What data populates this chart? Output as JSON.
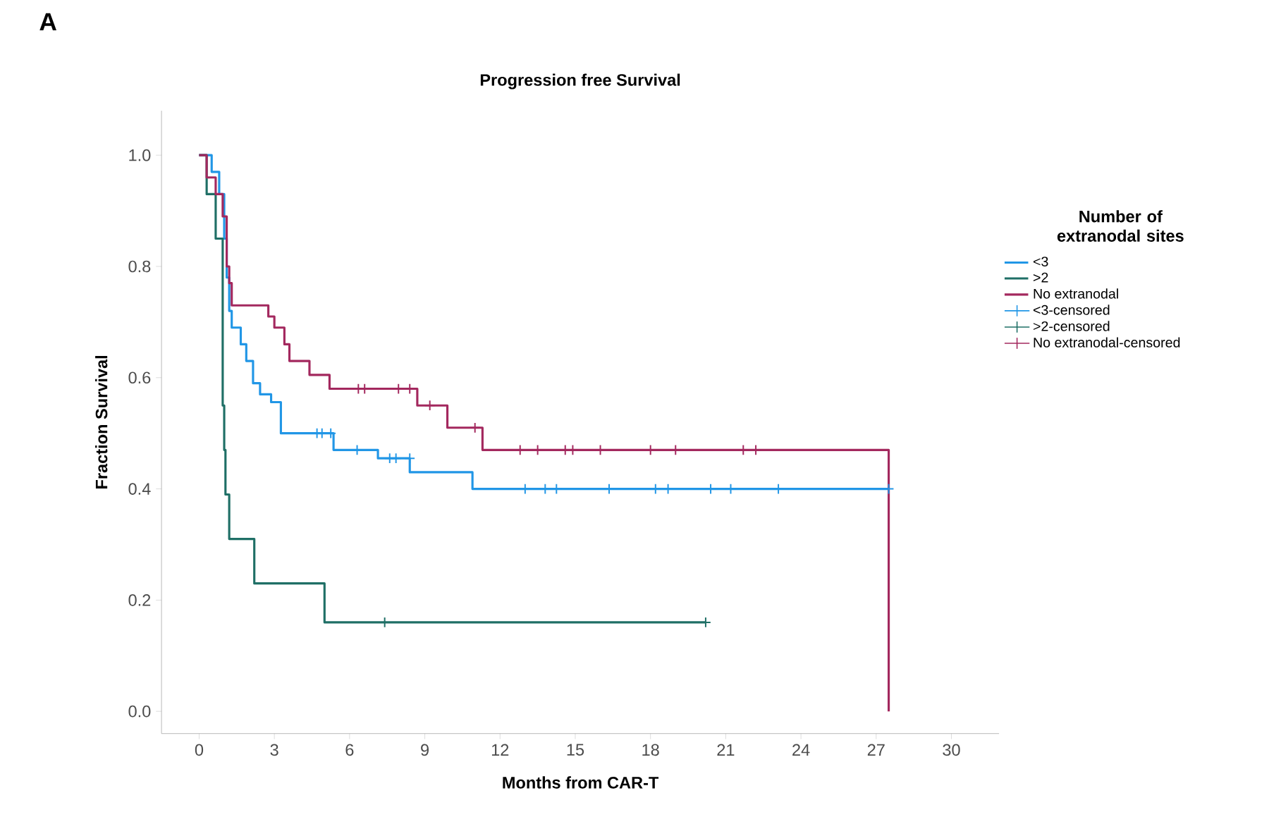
{
  "chart_data": {
    "type": "step",
    "title": "Progression free Survival",
    "xlabel": "Months from CAR-T",
    "ylabel": "Fraction Survival",
    "legend_title": "Number of extranodal sites",
    "annotations": [
      "A"
    ],
    "xlim": [
      -1.5,
      31.9
    ],
    "ylim": [
      -0.04,
      1.08
    ],
    "xticks": [
      0,
      3,
      6,
      9,
      12,
      15,
      18,
      21,
      24,
      27,
      30
    ],
    "yticks": [
      {
        "value": 0,
        "label": "0.0"
      },
      0.2,
      0.4,
      0.6,
      0.8,
      {
        "value": 1,
        "label": "1.0"
      }
    ],
    "grid": false,
    "legend": "right",
    "marker": "none",
    "line_style": "solid",
    "series": [
      {
        "name": "<3",
        "color": "#2196e6",
        "x": [
          0,
          0.5,
          0.8,
          1.0,
          1.1,
          1.2,
          1.3,
          1.66,
          1.88,
          2.15,
          2.43,
          2.87,
          3.26,
          5.36,
          7.13,
          8.4,
          10.9,
          27.5
        ],
        "values": [
          1.0,
          0.97,
          0.93,
          0.85,
          0.78,
          0.72,
          0.69,
          0.66,
          0.63,
          0.59,
          0.57,
          0.556,
          0.5,
          0.47,
          0.455,
          0.43,
          0.4,
          0.4
        ]
      },
      {
        "name": ">2",
        "color": "#1f6f66",
        "x": [
          0,
          0.3,
          0.66,
          0.94,
          1.0,
          1.05,
          1.2,
          2.2,
          5.0,
          20.2
        ],
        "values": [
          1.0,
          0.93,
          0.85,
          0.55,
          0.47,
          0.39,
          0.31,
          0.23,
          0.16,
          0.16
        ]
      },
      {
        "name": "No extranodal",
        "color": "#a3285e",
        "x": [
          0,
          0.3,
          0.66,
          0.94,
          1.1,
          1.2,
          1.3,
          2.76,
          3.0,
          3.4,
          3.6,
          4.4,
          5.2,
          8.7,
          9.9,
          11.3,
          27.5,
          27.5
        ],
        "values": [
          1.0,
          0.96,
          0.93,
          0.89,
          0.8,
          0.77,
          0.73,
          0.71,
          0.69,
          0.66,
          0.63,
          0.605,
          0.58,
          0.55,
          0.51,
          0.47,
          0.47,
          0.0
        ]
      },
      {
        "name": "<3-censored",
        "type": "scatter",
        "marker": "cross",
        "color": "#2196e6",
        "x": [
          4.7,
          4.9,
          5.25,
          6.3,
          7.6,
          7.85,
          8.4,
          13.0,
          13.8,
          14.25,
          16.35,
          18.2,
          18.7,
          20.4,
          21.2,
          23.1,
          27.5
        ],
        "values": [
          0.5,
          0.5,
          0.5,
          0.47,
          0.455,
          0.455,
          0.455,
          0.4,
          0.4,
          0.4,
          0.4,
          0.4,
          0.4,
          0.4,
          0.4,
          0.4,
          0.4
        ]
      },
      {
        "name": ">2-censored",
        "type": "scatter",
        "marker": "cross",
        "color": "#1f6f66",
        "x": [
          7.4,
          20.2
        ],
        "values": [
          0.16,
          0.16
        ]
      },
      {
        "name": "No extranodal-censored",
        "type": "scatter",
        "marker": "cross",
        "color": "#a3285e",
        "x": [
          6.35,
          6.6,
          7.95,
          8.4,
          9.2,
          11.0,
          12.8,
          13.5,
          14.6,
          14.9,
          16.0,
          18.0,
          19.0,
          21.7,
          22.2
        ],
        "values": [
          0.58,
          0.58,
          0.58,
          0.58,
          0.55,
          0.51,
          0.47,
          0.47,
          0.47,
          0.47,
          0.47,
          0.47,
          0.47,
          0.47,
          0.47
        ]
      }
    ]
  }
}
